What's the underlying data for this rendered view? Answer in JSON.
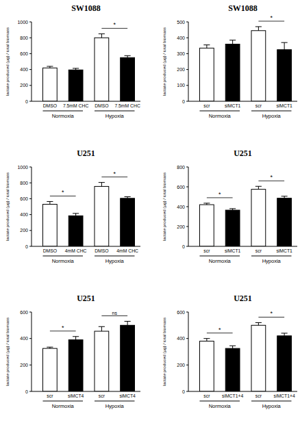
{
  "chart_data": [
    {
      "type": "bar",
      "title": "SW1088",
      "y_label": "lactate produced (µg) / total biomass",
      "categories": [
        "DMSO",
        "7.5mM CHC",
        "DMSO",
        "7.5mM CHC"
      ],
      "values": [
        420,
        395,
        800,
        550
      ],
      "errors": [
        20,
        20,
        50,
        25
      ],
      "colors": [
        "#ffffff",
        "#000000",
        "#ffffff",
        "#000000"
      ],
      "groups": [
        {
          "label": "Normoxia",
          "significance": null
        },
        {
          "label": "Hypoxia",
          "significance": "*"
        }
      ],
      "ylim": [
        0,
        1000
      ],
      "yticks": [
        0,
        200,
        400,
        600,
        800,
        1000
      ]
    },
    {
      "type": "bar",
      "title": "SW1088",
      "y_label": "lactate produced (µg) / total biomass",
      "categories": [
        "scr",
        "siMCT1",
        "scr",
        "siMCT1"
      ],
      "values": [
        335,
        360,
        445,
        325
      ],
      "errors": [
        20,
        25,
        25,
        45
      ],
      "colors": [
        "#ffffff",
        "#000000",
        "#ffffff",
        "#000000"
      ],
      "groups": [
        {
          "label": "Normoxia",
          "significance": null
        },
        {
          "label": "Hypoxia",
          "significance": "*"
        }
      ],
      "ylim": [
        0,
        500
      ],
      "yticks": [
        0,
        100,
        200,
        300,
        400,
        500
      ]
    },
    {
      "type": "bar",
      "title": "U251",
      "y_label": "lactate produced (µg) / total biomass",
      "categories": [
        "DMSO",
        "4mM CHC",
        "DMSO",
        "4mM CHC"
      ],
      "values": [
        530,
        385,
        755,
        605
      ],
      "errors": [
        35,
        30,
        50,
        20
      ],
      "colors": [
        "#ffffff",
        "#000000",
        "#ffffff",
        "#000000"
      ],
      "groups": [
        {
          "label": "Normoxia",
          "significance": "*"
        },
        {
          "label": "Hypoxia",
          "significance": "*"
        }
      ],
      "ylim": [
        0,
        1000
      ],
      "yticks": [
        0,
        200,
        400,
        600,
        800,
        1000
      ]
    },
    {
      "type": "bar",
      "title": "U251",
      "y_label": "lactate produced (µg) / total biomass",
      "categories": [
        "scr",
        "siMCT1",
        "scr",
        "siMCT1"
      ],
      "values": [
        420,
        365,
        575,
        485
      ],
      "errors": [
        15,
        15,
        30,
        20
      ],
      "colors": [
        "#ffffff",
        "#000000",
        "#ffffff",
        "#000000"
      ],
      "groups": [
        {
          "label": "Normoxia",
          "significance": "*"
        },
        {
          "label": "Hypoxia",
          "significance": "*"
        }
      ],
      "ylim": [
        0,
        800
      ],
      "yticks": [
        0,
        200,
        400,
        600,
        800
      ]
    },
    {
      "type": "bar",
      "title": "U251",
      "y_label": "lactate produced (µg) / total biomass",
      "categories": [
        "scr",
        "siMCT4",
        "scr",
        "siMCT4"
      ],
      "values": [
        325,
        390,
        455,
        500
      ],
      "errors": [
        10,
        25,
        35,
        30
      ],
      "colors": [
        "#ffffff",
        "#000000",
        "#ffffff",
        "#000000"
      ],
      "groups": [
        {
          "label": "Normoxia",
          "significance": "*"
        },
        {
          "label": "Hypoxia",
          "significance": "ns"
        }
      ],
      "ylim": [
        0,
        600
      ],
      "yticks": [
        0,
        200,
        400,
        600
      ]
    },
    {
      "type": "bar",
      "title": "U251",
      "y_label": "lactate produced (µg) / total biomass",
      "categories": [
        "scr",
        "siMCT1+4",
        "scr",
        "siMCT1+4"
      ],
      "values": [
        380,
        325,
        500,
        420
      ],
      "errors": [
        20,
        20,
        20,
        20
      ],
      "colors": [
        "#ffffff",
        "#000000",
        "#ffffff",
        "#000000"
      ],
      "groups": [
        {
          "label": "Normoxia",
          "significance": "*"
        },
        {
          "label": "Hypoxia",
          "significance": "*"
        }
      ],
      "ylim": [
        0,
        600
      ],
      "yticks": [
        0,
        200,
        400,
        600
      ]
    }
  ]
}
